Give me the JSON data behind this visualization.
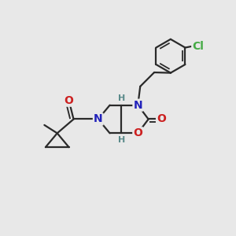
{
  "background_color": "#e8e8e8",
  "line_color": "#2a2a2a",
  "bond_width": 1.6,
  "atom_colors": {
    "N": "#2222bb",
    "O": "#cc2020",
    "Cl": "#44aa44",
    "H": "#5a8a8a",
    "C": "#2a2a2a"
  },
  "font_size_atom": 10,
  "font_size_h": 8
}
